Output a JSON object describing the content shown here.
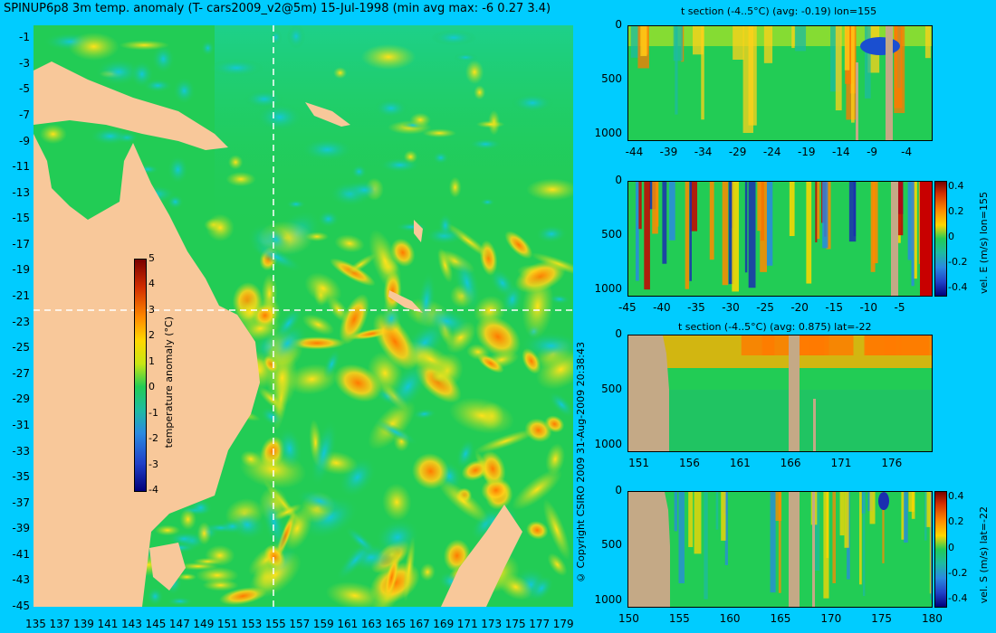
{
  "map": {
    "title": "SPINUP6p8 3m temp. anomaly (T- cars2009_v2@5m) 15-Jul-1998 (min avg max: -6 0.27 3.4)",
    "x_ticks": [
      "135",
      "137",
      "139",
      "141",
      "143",
      "145",
      "147",
      "149",
      "151",
      "153",
      "155",
      "157",
      "159",
      "161",
      "163",
      "165",
      "167",
      "169",
      "171",
      "173",
      "175",
      "177",
      "179"
    ],
    "y_ticks": [
      "-1",
      "-3",
      "-5",
      "-7",
      "-9",
      "-11",
      "-13",
      "-15",
      "-17",
      "-19",
      "-21",
      "-23",
      "-25",
      "-27",
      "-29",
      "-31",
      "-33",
      "-35",
      "-37",
      "-39",
      "-41",
      "-43",
      "-45"
    ],
    "colorbar_label": "temperature anomaly (°C)",
    "colorbar_ticks": [
      "5",
      "4",
      "3",
      "2",
      "1",
      "0",
      "-1",
      "-2",
      "-3",
      "-4"
    ],
    "section_lon": 155,
    "section_lat": -22
  },
  "copyright": "© Copyright CSIRO 2009   31-Aug-2009 20:38:43",
  "panels": [
    {
      "title": "t section (-4..5°C) (avg: -0.19) lon=155",
      "x_ticks": [
        "-44",
        "-39",
        "-34",
        "-29",
        "-24",
        "-19",
        "-14",
        "-9",
        "-4"
      ],
      "y_ticks": [
        "0",
        "500",
        "1000"
      ],
      "colorbar_label": "",
      "colorbar_ticks": []
    },
    {
      "title": "",
      "x_ticks": [
        "-45",
        "-40",
        "-35",
        "-30",
        "-25",
        "-20",
        "-15",
        "-10",
        "-5"
      ],
      "y_ticks": [
        "0",
        "500",
        "1000"
      ],
      "colorbar_label": "vel. E (m/s) lon=155",
      "colorbar_ticks": [
        "0.4",
        "0.2",
        "0",
        "-0.2",
        "-0.4"
      ]
    },
    {
      "title": "t section (-4..5°C) (avg: 0.875) lat=-22",
      "x_ticks": [
        "151",
        "156",
        "161",
        "166",
        "171",
        "176"
      ],
      "y_ticks": [
        "0",
        "500",
        "1000"
      ],
      "colorbar_label": "",
      "colorbar_ticks": []
    },
    {
      "title": "",
      "x_ticks": [
        "150",
        "155",
        "160",
        "165",
        "170",
        "175",
        "180"
      ],
      "y_ticks": [
        "0",
        "500",
        "1000"
      ],
      "colorbar_label": "vel. S (m/s) lat=-22",
      "colorbar_ticks": [
        "0.4",
        "0.2",
        "0",
        "-0.2",
        "-0.4"
      ]
    }
  ],
  "colors": {
    "background": "#00ccff",
    "land": "#f8c89a",
    "section_land": "#c4a986",
    "field_green": "#22cc55"
  },
  "chart_data": [
    {
      "type": "heatmap",
      "title": "SPINUP6p8 3m temp. anomaly (T- cars2009_v2@5m) 15-Jul-1998 (min avg max: -6 0.27 3.4)",
      "xlim": [
        135,
        180
      ],
      "ylim": [
        -45,
        0
      ],
      "x_ticks": [
        135,
        137,
        139,
        141,
        143,
        145,
        147,
        149,
        151,
        153,
        155,
        157,
        159,
        161,
        163,
        165,
        167,
        169,
        171,
        173,
        175,
        177,
        179
      ],
      "y_ticks": [
        -1,
        -3,
        -5,
        -7,
        -9,
        -11,
        -13,
        -15,
        -17,
        -19,
        -21,
        -23,
        -25,
        -27,
        -29,
        -31,
        -33,
        -35,
        -37,
        -39,
        -41,
        -43,
        -45
      ],
      "colorbar": {
        "label": "temperature anomaly (°C)",
        "range": [
          -4,
          5
        ]
      },
      "stats": {
        "min": -6,
        "avg": 0.27,
        "max": 3.4
      }
    },
    {
      "type": "heatmap",
      "title": "t section (-4..5°C) (avg: -0.19) lon=155",
      "xlim": [
        -45,
        -1
      ],
      "ylim": [
        1050,
        0
      ],
      "x_ticks": [
        -44,
        -39,
        -34,
        -29,
        -24,
        -19,
        -14,
        -9,
        -4
      ],
      "y_ticks": [
        0,
        500,
        1000
      ],
      "range": [
        -4,
        5
      ],
      "avg": -0.19
    },
    {
      "type": "heatmap",
      "xlim": [
        -45,
        -1
      ],
      "ylim": [
        1050,
        0
      ],
      "x_ticks": [
        -45,
        -40,
        -35,
        -30,
        -25,
        -20,
        -15,
        -10,
        -5
      ],
      "y_ticks": [
        0,
        500,
        1000
      ],
      "colorbar": {
        "label": "vel. E (m/s) lon=155",
        "range": [
          -0.4,
          0.4
        ]
      }
    },
    {
      "type": "heatmap",
      "title": "t section (-4..5°C) (avg: 0.875) lat=-22",
      "xlim": [
        150,
        180
      ],
      "ylim": [
        1050,
        0
      ],
      "x_ticks": [
        151,
        156,
        161,
        166,
        171,
        176
      ],
      "y_ticks": [
        0,
        500,
        1000
      ],
      "range": [
        -4,
        5
      ],
      "avg": 0.875
    },
    {
      "type": "heatmap",
      "xlim": [
        150,
        180
      ],
      "ylim": [
        1050,
        0
      ],
      "x_ticks": [
        150,
        155,
        160,
        165,
        170,
        175,
        180
      ],
      "y_ticks": [
        0,
        500,
        1000
      ],
      "colorbar": {
        "label": "vel. S (m/s) lat=-22",
        "range": [
          -0.4,
          0.4
        ]
      }
    }
  ]
}
